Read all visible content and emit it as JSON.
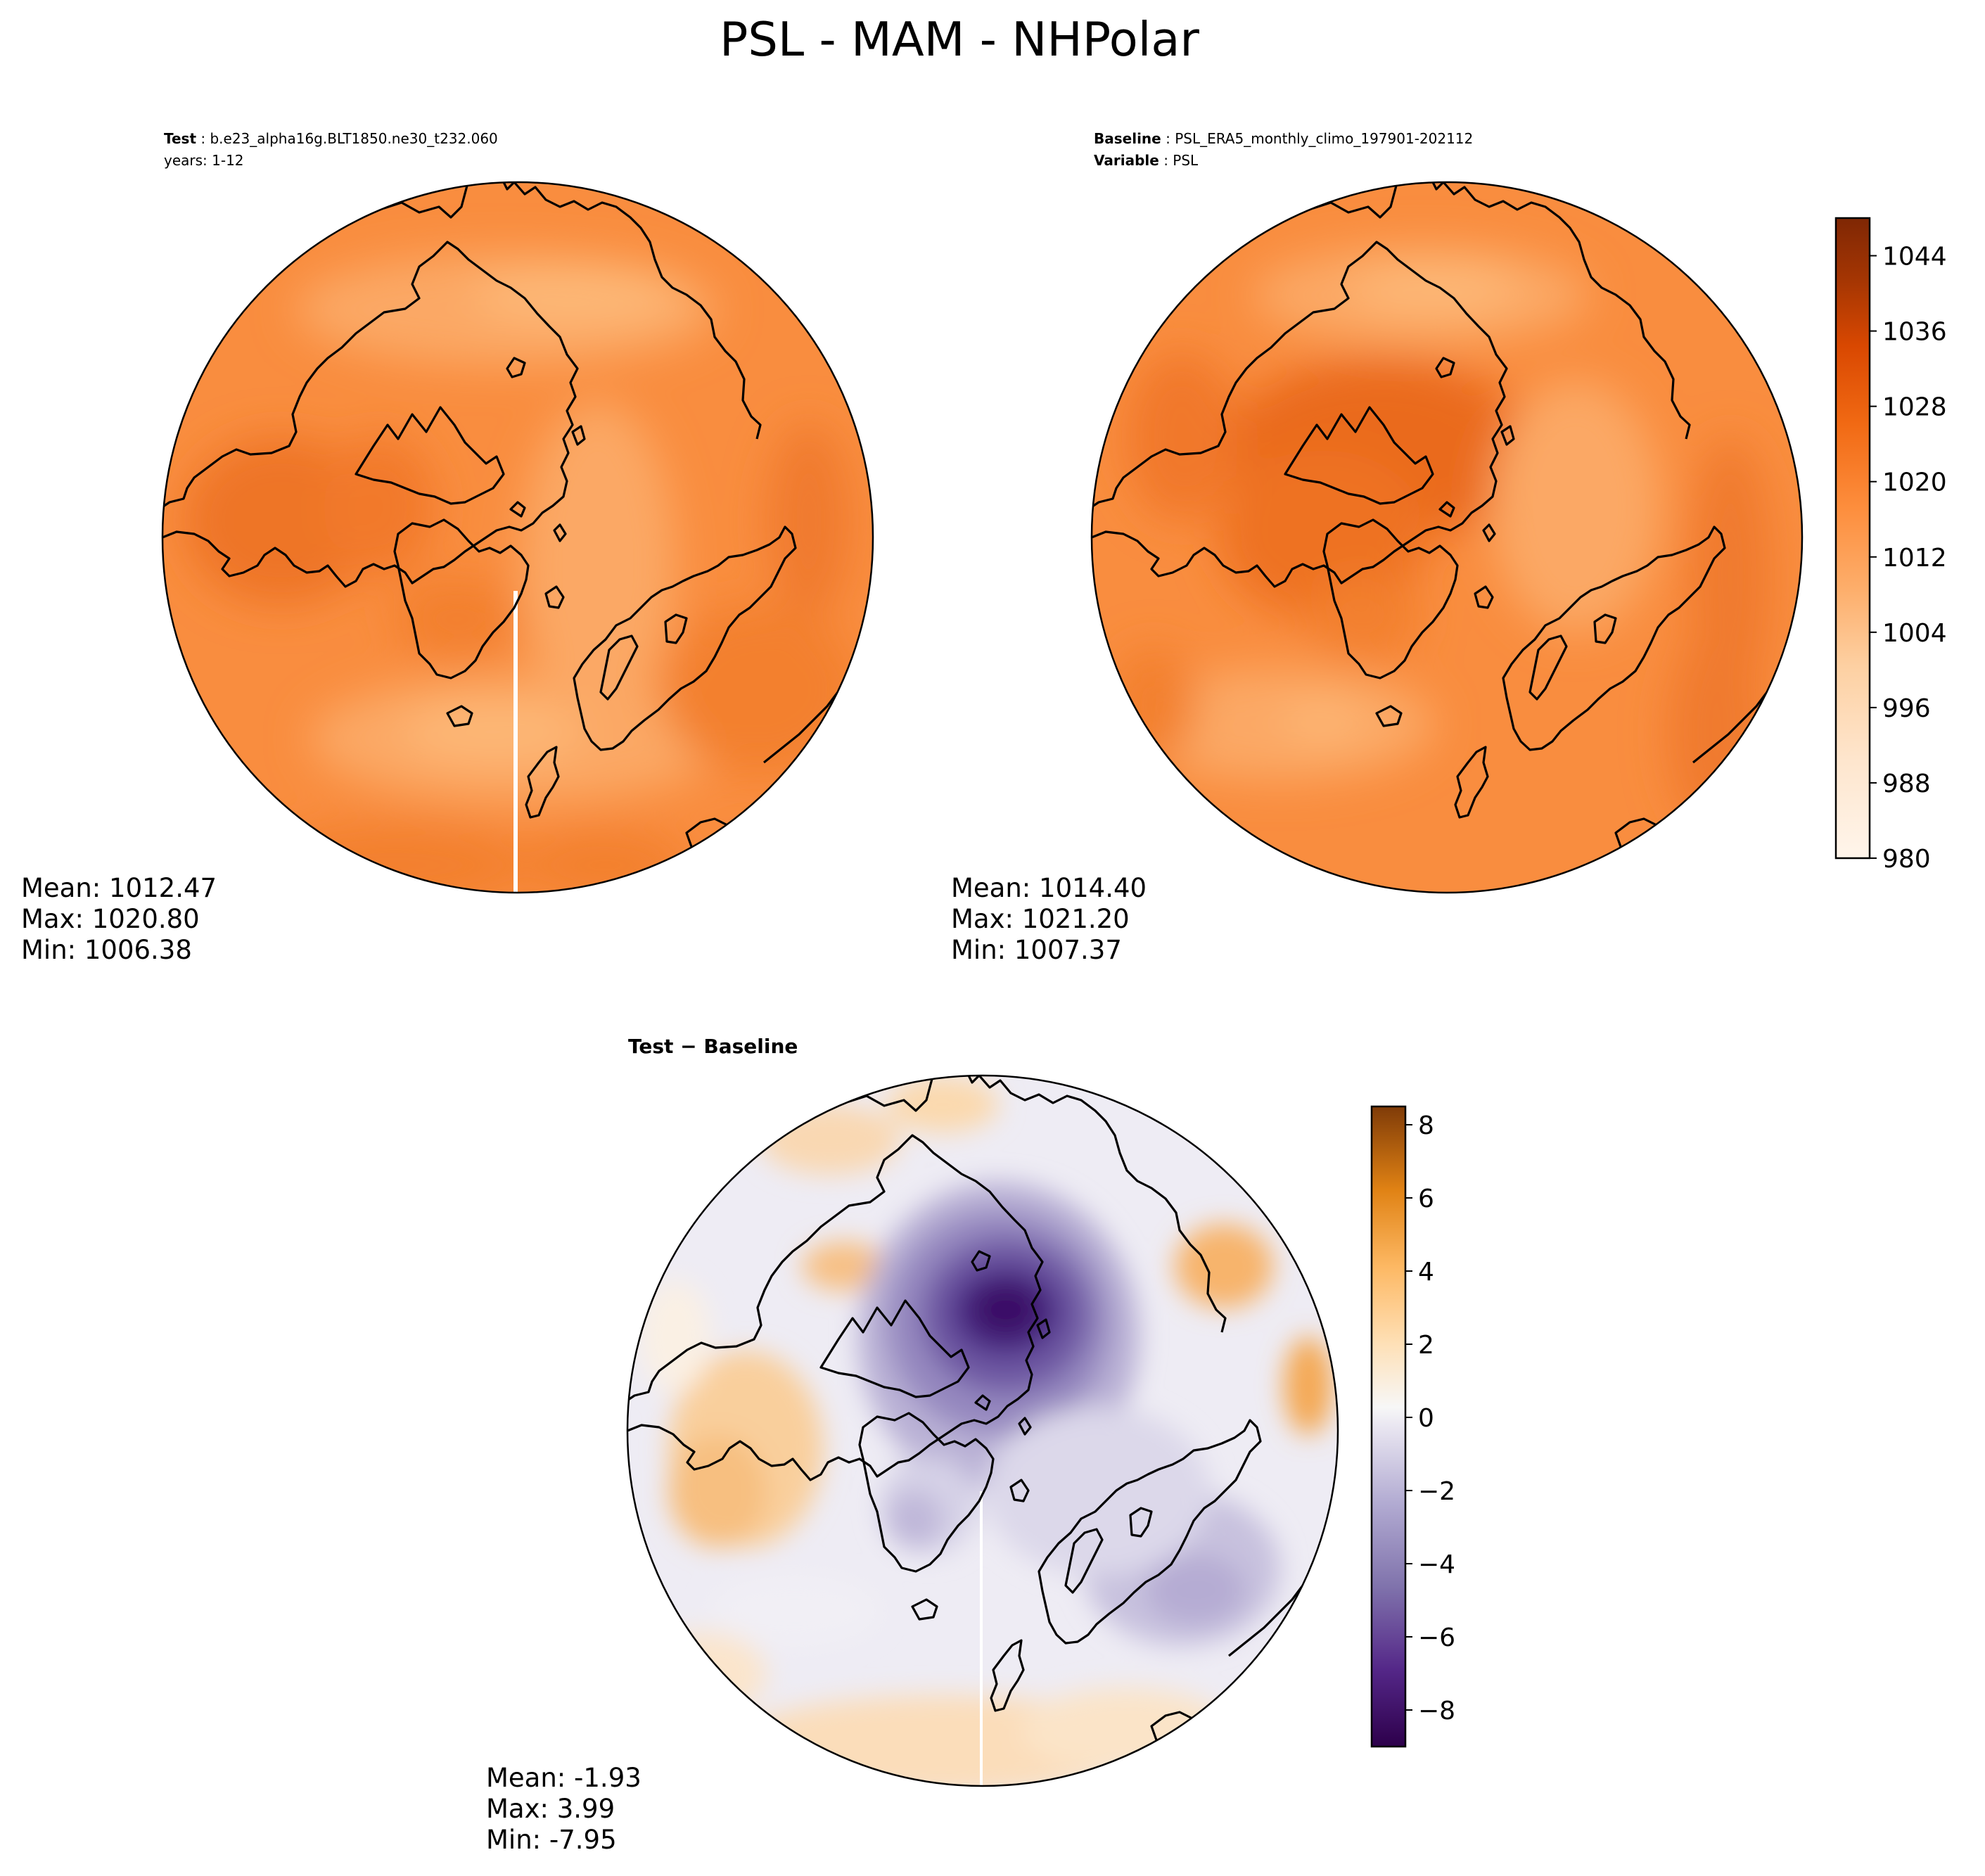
{
  "title": "PSL - MAM - NHPolar",
  "test_panel": {
    "label": "Test",
    "case": "b.e23_alpha16g.BLT1850.ne30_t232.060",
    "years": "years: 1-12",
    "stats": {
      "mean": "Mean: 1012.47",
      "max": "Max: 1020.80",
      "min": "Min: 1006.38"
    }
  },
  "baseline_panel": {
    "label": "Baseline",
    "case": "PSL_ERA5_monthly_climo_197901-202112",
    "variable_label": "Variable",
    "variable": "PSL",
    "stats": {
      "mean": "Mean: 1014.40",
      "max": "Max: 1021.20",
      "min": "Min: 1007.37"
    }
  },
  "diff_panel": {
    "label": "Test − Baseline",
    "stats": {
      "mean": "Mean: -1.93",
      "max": "Max:  3.99",
      "min": "Min: -7.95"
    }
  },
  "chart_data": [
    {
      "type": "heatmap",
      "panel": "test",
      "projection": "north polar stereographic",
      "variable": "PSL",
      "mean": 1012.47,
      "max": 1020.8,
      "min": 1006.38,
      "levels": [
        980,
        984,
        988,
        992,
        996,
        1000,
        1004,
        1008,
        1012,
        1016,
        1020,
        1024,
        1028,
        1032,
        1036,
        1040,
        1044,
        1048
      ],
      "colorbar": {
        "cmap": "Oranges",
        "ticks": [
          980,
          988,
          996,
          1004,
          1012,
          1020,
          1028,
          1036,
          1044
        ],
        "range": [
          980,
          1048
        ]
      }
    },
    {
      "type": "heatmap",
      "panel": "baseline",
      "projection": "north polar stereographic",
      "variable": "PSL",
      "mean": 1014.4,
      "max": 1021.2,
      "min": 1007.37,
      "colorbar": "shared with test panel"
    },
    {
      "type": "heatmap",
      "panel": "difference",
      "projection": "north polar stereographic",
      "mean": -1.93,
      "max": 3.99,
      "min": -7.95,
      "colorbar": {
        "cmap": "PuOr_r",
        "ticks": [
          -8,
          -6,
          -4,
          -2,
          0,
          2,
          4,
          6,
          8
        ],
        "range": [
          -9,
          8.5
        ]
      }
    }
  ],
  "colors": {
    "orange_base": "#f98d3f",
    "orange_light": "#fba865",
    "orange_dark": "#e8661c",
    "diff_purple": "#3f0a6b",
    "diff_orange": "#f7b46c",
    "diff_white": "#f6f4f7"
  },
  "icons": [
    "coastline-outline"
  ]
}
